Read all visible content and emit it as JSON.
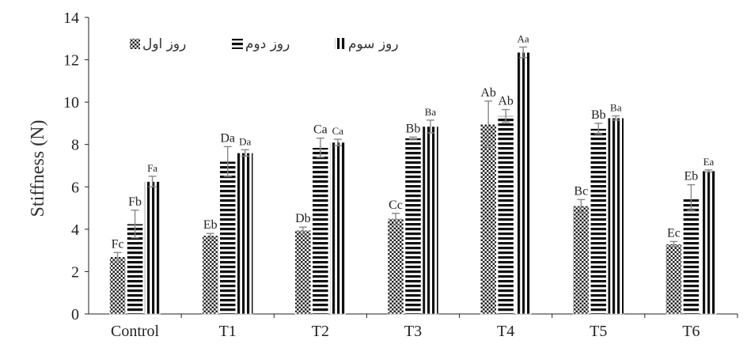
{
  "chart_data": {
    "type": "bar",
    "ylabel": "Stiffness (N)",
    "ylim": [
      0,
      14
    ],
    "yticks": [
      0,
      2,
      4,
      6,
      8,
      10,
      12,
      14
    ],
    "grid": false,
    "legend_position": "top-left",
    "categories": [
      "Control",
      "T1",
      "T2",
      "T3",
      "T4",
      "T5",
      "T6"
    ],
    "series": [
      {
        "name": "روز اول",
        "pattern": "dots",
        "values": [
          2.7,
          3.7,
          3.95,
          4.5,
          8.95,
          5.1,
          3.3
        ],
        "errors": [
          0.2,
          0.1,
          0.15,
          0.25,
          1.1,
          0.3,
          0.12
        ],
        "labels": [
          "Fc",
          "Eb",
          "Db",
          "Cc",
          "Ab",
          "Bc",
          "Ec"
        ]
      },
      {
        "name": "روز دوم",
        "pattern": "horizontal",
        "values": [
          4.25,
          7.2,
          7.85,
          8.3,
          9.35,
          8.75,
          5.5
        ],
        "errors": [
          0.65,
          0.7,
          0.45,
          0.05,
          0.3,
          0.25,
          0.6
        ],
        "labels": [
          "Fb",
          "Da",
          "Ca",
          "Bb",
          "Ab",
          "Bb",
          "Eb"
        ]
      },
      {
        "name": "روز سوم",
        "pattern": "vertical",
        "values": [
          6.25,
          7.6,
          8.1,
          8.85,
          12.35,
          9.25,
          6.75
        ],
        "errors": [
          0.25,
          0.15,
          0.15,
          0.3,
          0.25,
          0.1,
          0.05
        ],
        "labels": [
          "Fa",
          "Da",
          "Ca",
          "Ba",
          "Aa",
          "Ba",
          "Ea"
        ]
      }
    ],
    "colors": {
      "axis": "#222222",
      "bar_ink": "#111111",
      "error_bar": "#888888"
    }
  }
}
